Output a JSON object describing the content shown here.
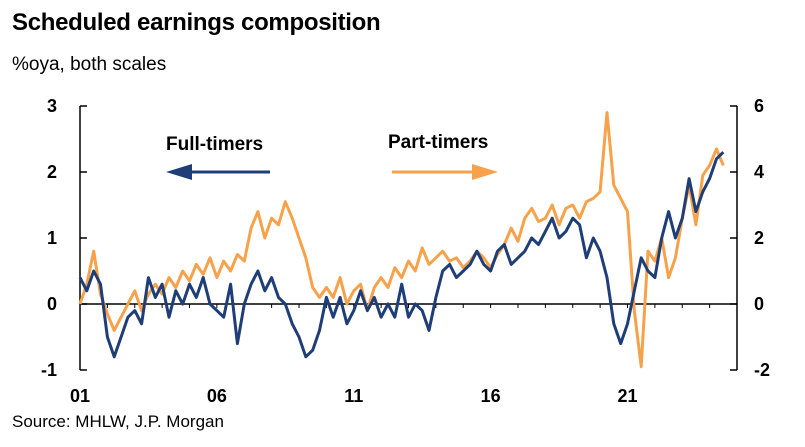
{
  "chart_data": {
    "type": "line",
    "title": "Scheduled earnings composition",
    "subtitle": "%oya, both scales",
    "source": "Source: MHLW, J.P. Morgan",
    "x_tick_labels": [
      "01",
      "06",
      "11",
      "16",
      "21"
    ],
    "x_range": [
      2001.0,
      2025.0
    ],
    "left_axis": {
      "ylim": [
        -1,
        3
      ],
      "ticks": [
        "-1",
        "0",
        "1",
        "2",
        "3"
      ]
    },
    "right_axis": {
      "ylim": [
        -2,
        6
      ],
      "ticks": [
        "-2",
        "0",
        "2",
        "4",
        "6"
      ]
    },
    "annotations": {
      "full": "Full-timers",
      "part": "Part-timers"
    },
    "colors": {
      "full": "#1F3E78",
      "part": "#F7A24A",
      "zero_line": "#000000"
    },
    "series": [
      {
        "name": "Full-timers",
        "axis": "left",
        "x": [
          2001.0,
          2001.25,
          2001.5,
          2001.75,
          2002.0,
          2002.25,
          2002.5,
          2002.75,
          2003.0,
          2003.25,
          2003.5,
          2003.75,
          2004.0,
          2004.25,
          2004.5,
          2004.75,
          2005.0,
          2005.25,
          2005.5,
          2005.75,
          2006.0,
          2006.25,
          2006.5,
          2006.75,
          2007.0,
          2007.25,
          2007.5,
          2007.75,
          2008.0,
          2008.25,
          2008.5,
          2008.75,
          2009.0,
          2009.25,
          2009.5,
          2009.75,
          2010.0,
          2010.25,
          2010.5,
          2010.75,
          2011.0,
          2011.25,
          2011.5,
          2011.75,
          2012.0,
          2012.25,
          2012.5,
          2012.75,
          2013.0,
          2013.25,
          2013.5,
          2013.75,
          2014.0,
          2014.25,
          2014.5,
          2014.75,
          2015.0,
          2015.25,
          2015.5,
          2015.75,
          2016.0,
          2016.25,
          2016.5,
          2016.75,
          2017.0,
          2017.25,
          2017.5,
          2017.75,
          2018.0,
          2018.25,
          2018.5,
          2018.75,
          2019.0,
          2019.25,
          2019.5,
          2019.75,
          2020.0,
          2020.25,
          2020.5,
          2020.75,
          2021.0,
          2021.25,
          2021.5,
          2021.75,
          2022.0,
          2022.25,
          2022.5,
          2022.75,
          2023.0,
          2023.25,
          2023.5,
          2023.75,
          2024.0,
          2024.25,
          2024.5
        ],
        "values": [
          0.4,
          0.2,
          0.5,
          0.3,
          -0.5,
          -0.8,
          -0.5,
          -0.2,
          -0.1,
          -0.3,
          0.4,
          0.1,
          0.3,
          -0.2,
          0.2,
          0.0,
          0.3,
          0.1,
          0.4,
          0.0,
          -0.1,
          -0.2,
          0.3,
          -0.6,
          0.0,
          0.3,
          0.5,
          0.2,
          0.4,
          0.1,
          0.0,
          -0.3,
          -0.5,
          -0.8,
          -0.7,
          -0.4,
          0.1,
          -0.2,
          0.1,
          -0.3,
          -0.1,
          0.2,
          -0.1,
          0.1,
          -0.2,
          0.0,
          -0.2,
          0.3,
          -0.2,
          0.0,
          -0.1,
          -0.4,
          0.1,
          0.5,
          0.6,
          0.4,
          0.5,
          0.6,
          0.8,
          0.6,
          0.5,
          0.8,
          0.9,
          0.6,
          0.7,
          0.8,
          1.0,
          0.9,
          1.1,
          1.3,
          1.0,
          1.1,
          1.3,
          1.2,
          0.7,
          1.0,
          0.8,
          0.4,
          -0.3,
          -0.6,
          -0.3,
          0.2,
          0.7,
          0.5,
          0.4,
          1.0,
          1.4,
          1.0,
          1.3,
          1.9,
          1.4,
          1.7,
          1.9,
          2.2,
          2.3
        ]
      },
      {
        "name": "Part-timers",
        "axis": "right",
        "x": [
          2001.0,
          2001.25,
          2001.5,
          2001.75,
          2002.0,
          2002.25,
          2002.5,
          2002.75,
          2003.0,
          2003.25,
          2003.5,
          2003.75,
          2004.0,
          2004.25,
          2004.5,
          2004.75,
          2005.0,
          2005.25,
          2005.5,
          2005.75,
          2006.0,
          2006.25,
          2006.5,
          2006.75,
          2007.0,
          2007.25,
          2007.5,
          2007.75,
          2008.0,
          2008.25,
          2008.5,
          2008.75,
          2009.0,
          2009.25,
          2009.5,
          2009.75,
          2010.0,
          2010.25,
          2010.5,
          2010.75,
          2011.0,
          2011.25,
          2011.5,
          2011.75,
          2012.0,
          2012.25,
          2012.5,
          2012.75,
          2013.0,
          2013.25,
          2013.5,
          2013.75,
          2014.0,
          2014.25,
          2014.5,
          2014.75,
          2015.0,
          2015.25,
          2015.5,
          2015.75,
          2016.0,
          2016.25,
          2016.5,
          2016.75,
          2017.0,
          2017.25,
          2017.5,
          2017.75,
          2018.0,
          2018.25,
          2018.5,
          2018.75,
          2019.0,
          2019.25,
          2019.5,
          2019.75,
          2020.0,
          2020.25,
          2020.5,
          2020.75,
          2021.0,
          2021.25,
          2021.5,
          2021.75,
          2022.0,
          2022.25,
          2022.5,
          2022.75,
          2023.0,
          2023.25,
          2023.5,
          2023.75,
          2024.0,
          2024.25,
          2024.5
        ],
        "values": [
          0.0,
          0.6,
          1.6,
          0.3,
          -0.3,
          -0.8,
          -0.4,
          0.0,
          0.4,
          -0.2,
          0.3,
          0.6,
          0.3,
          0.8,
          0.5,
          1.0,
          0.7,
          1.2,
          0.9,
          1.4,
          0.8,
          1.3,
          1.0,
          1.5,
          1.3,
          2.3,
          2.8,
          2.0,
          2.6,
          2.4,
          3.1,
          2.6,
          2.0,
          1.4,
          0.5,
          0.2,
          0.5,
          0.2,
          0.8,
          0.0,
          0.4,
          0.6,
          -0.2,
          0.5,
          0.8,
          0.5,
          1.1,
          0.8,
          1.3,
          1.0,
          1.7,
          1.2,
          1.4,
          1.6,
          1.3,
          1.4,
          1.1,
          1.3,
          1.6,
          1.4,
          1.1,
          1.5,
          1.8,
          2.3,
          1.9,
          2.6,
          2.9,
          2.5,
          2.6,
          3.0,
          2.4,
          2.9,
          3.0,
          2.6,
          3.1,
          3.2,
          3.4,
          5.8,
          3.6,
          3.2,
          2.8,
          -0.2,
          -1.9,
          1.6,
          1.3,
          2.0,
          0.8,
          1.4,
          2.6,
          3.6,
          2.4,
          3.9,
          4.2,
          4.7,
          4.2
        ]
      }
    ]
  }
}
